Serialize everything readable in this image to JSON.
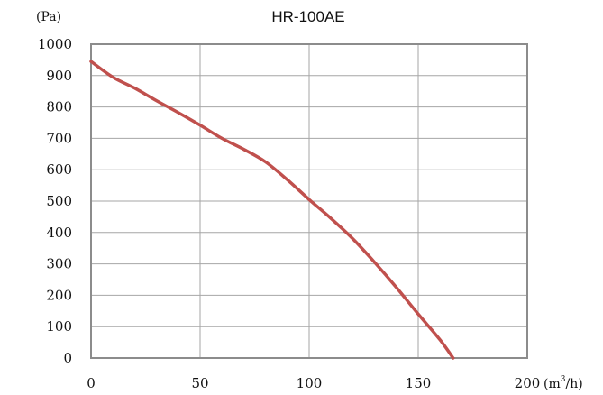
{
  "chart_data": {
    "type": "line",
    "title": "HR-100AE",
    "ylabel": "(Pa)",
    "xlabel_prefix": "(m",
    "xlabel_sup": "3",
    "xlabel_suffix": "/h)",
    "xlim": [
      0,
      200
    ],
    "ylim": [
      0,
      1000
    ],
    "xticks": [
      0,
      50,
      100,
      150,
      200
    ],
    "yticks": [
      0,
      100,
      200,
      300,
      400,
      500,
      600,
      700,
      800,
      900,
      1000
    ],
    "grid": true,
    "line_color": "#c0504d",
    "series": [
      {
        "x": [
          0,
          10,
          20,
          30,
          40,
          50,
          60,
          70,
          80,
          90,
          100,
          110,
          120,
          130,
          140,
          150,
          160,
          166
        ],
        "y": [
          945,
          895,
          860,
          820,
          782,
          742,
          700,
          665,
          625,
          568,
          505,
          445,
          380,
          305,
          225,
          140,
          58,
          0
        ]
      }
    ]
  }
}
